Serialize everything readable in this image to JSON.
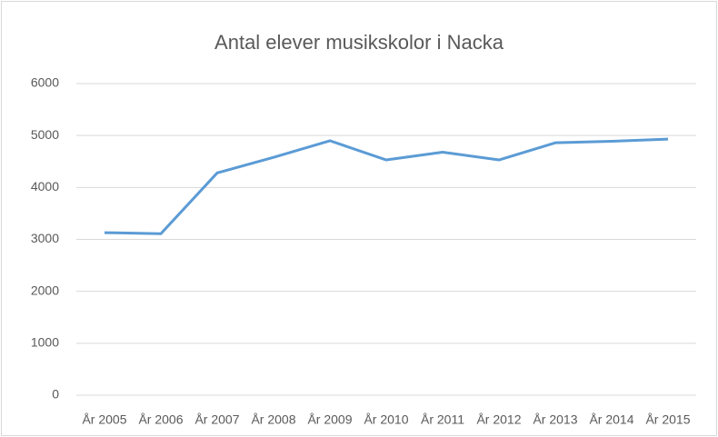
{
  "chart_data": {
    "type": "line",
    "title": "Antal elever musikskolor i Nacka",
    "categories": [
      "År 2005",
      "År 2006",
      "År 2007",
      "År 2008",
      "År 2009",
      "År 2010",
      "År 2011",
      "År 2012",
      "År 2013",
      "År 2014",
      "År 2015"
    ],
    "values": [
      3130,
      3110,
      4280,
      4580,
      4900,
      4530,
      4680,
      4530,
      4860,
      4890,
      4930
    ],
    "color": "#5b9bd5",
    "ylim": [
      0,
      6000
    ],
    "yticks": [
      0,
      1000,
      2000,
      3000,
      4000,
      5000,
      6000
    ],
    "grid": true
  }
}
